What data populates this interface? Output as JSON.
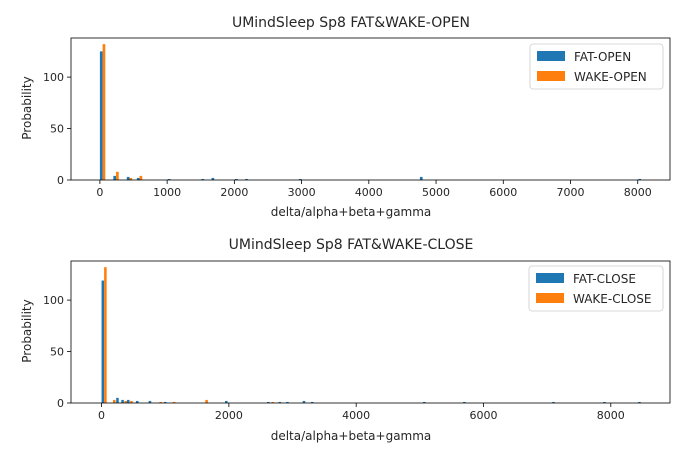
{
  "chart_data": [
    {
      "type": "bar",
      "title": "UMindSleep Sp8 FAT&WAKE-OPEN",
      "xlabel": "delta/alpha+beta+gamma",
      "ylabel": "Probability",
      "xlim": [
        -430,
        8480
      ],
      "ylim": [
        0,
        138
      ],
      "xticks": [
        "0",
        "1000",
        "2000",
        "3000",
        "4000",
        "5000",
        "6000",
        "7000",
        "8000"
      ],
      "yticks": [
        "0",
        "50",
        "100"
      ],
      "bin_width": 40,
      "legend_position": "top-right",
      "colors": [
        "#1f77b4",
        "#ff7f0e"
      ],
      "series": [
        {
          "name": "FAT-OPEN",
          "x": [
            20,
            220,
            420,
            570,
            1030,
            1530,
            1680,
            2030,
            2180,
            2980,
            4780,
            8030
          ],
          "values": [
            125,
            4,
            3,
            2,
            1,
            1,
            2,
            1,
            1,
            1,
            3,
            1
          ]
        },
        {
          "name": "WAKE-OPEN",
          "x": [
            60,
            260,
            460,
            610
          ],
          "values": [
            132,
            8,
            2,
            4
          ]
        }
      ]
    },
    {
      "type": "bar",
      "title": "UMindSleep Sp8 FAT&WAKE-CLOSE",
      "xlabel": "delta/alpha+beta+gamma",
      "ylabel": "Probability",
      "xlim": [
        -480,
        8930
      ],
      "ylim": [
        0,
        138
      ],
      "xticks": [
        "0",
        "2000",
        "4000",
        "6000",
        "8000"
      ],
      "yticks": [
        "0",
        "50",
        "100"
      ],
      "bin_width": 40,
      "legend_position": "top-right",
      "colors": [
        "#1f77b4",
        "#ff7f0e"
      ],
      "series": [
        {
          "name": "FAT-CLOSE",
          "x": [
            20,
            250,
            330,
            420,
            560,
            760,
            1000,
            1960,
            2620,
            2800,
            2920,
            3180,
            3310,
            5070,
            5700,
            7100,
            7900,
            8450
          ],
          "values": [
            119,
            5,
            3,
            3,
            2,
            2,
            1,
            2,
            1,
            1,
            1,
            2,
            1,
            1,
            1,
            1,
            1,
            1
          ]
        },
        {
          "name": "WAKE-CLOSE",
          "x": [
            60,
            200,
            380,
            470,
            930,
            1140,
            1650,
            2690
          ],
          "values": [
            132,
            3,
            2,
            2,
            1,
            1,
            3,
            1
          ]
        }
      ]
    }
  ]
}
